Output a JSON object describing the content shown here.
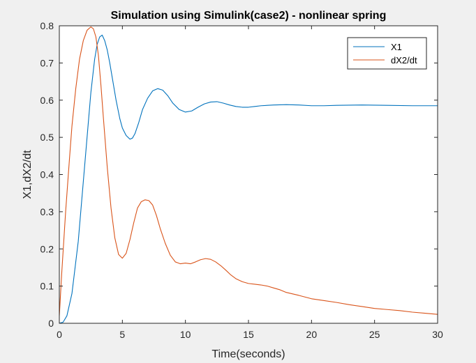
{
  "chart_data": {
    "type": "line",
    "title": "Simulation using Simulink(case2) - nonlinear spring",
    "xlabel": "Time(seconds)",
    "ylabel": "X1,dX2/dt",
    "xlim": [
      0,
      30
    ],
    "ylim": [
      0,
      0.8
    ],
    "xticks": [
      "0",
      "5",
      "10",
      "15",
      "20",
      "25",
      "30"
    ],
    "yticks": [
      "0",
      "0.1",
      "0.2",
      "0.3",
      "0.4",
      "0.5",
      "0.6",
      "0.7",
      "0.8"
    ],
    "grid": false,
    "legend_position": "top-right",
    "series": [
      {
        "name": "X1",
        "color": "#0072BD",
        "x": [
          0,
          0.3,
          0.6,
          1.0,
          1.5,
          2.0,
          2.5,
          2.8,
          3.0,
          3.2,
          3.4,
          3.6,
          3.8,
          4.0,
          4.2,
          4.5,
          4.8,
          5.0,
          5.3,
          5.6,
          5.8,
          6.0,
          6.3,
          6.6,
          7.0,
          7.4,
          7.8,
          8.2,
          8.6,
          9.0,
          9.5,
          10.0,
          10.5,
          11.0,
          11.5,
          12.0,
          12.5,
          13.0,
          13.5,
          14.0,
          14.5,
          15.0,
          15.5,
          16.0,
          17.0,
          18.0,
          19.0,
          20.0,
          21.0,
          22.0,
          24.0,
          26.0,
          28.0,
          30.0
        ],
        "y": [
          0,
          0.003,
          0.02,
          0.08,
          0.22,
          0.42,
          0.62,
          0.71,
          0.75,
          0.77,
          0.775,
          0.76,
          0.735,
          0.7,
          0.66,
          0.6,
          0.55,
          0.525,
          0.505,
          0.495,
          0.498,
          0.51,
          0.54,
          0.575,
          0.605,
          0.625,
          0.631,
          0.627,
          0.612,
          0.592,
          0.575,
          0.568,
          0.571,
          0.581,
          0.59,
          0.595,
          0.596,
          0.592,
          0.587,
          0.583,
          0.581,
          0.581,
          0.583,
          0.585,
          0.587,
          0.588,
          0.587,
          0.585,
          0.585,
          0.586,
          0.587,
          0.586,
          0.585,
          0.585
        ]
      },
      {
        "name": "dX2/dt",
        "color": "#D95319",
        "x": [
          0,
          0.2,
          0.5,
          0.8,
          1.0,
          1.3,
          1.6,
          1.9,
          2.2,
          2.5,
          2.7,
          2.9,
          3.1,
          3.3,
          3.5,
          3.8,
          4.1,
          4.4,
          4.7,
          5.0,
          5.3,
          5.6,
          5.9,
          6.2,
          6.5,
          6.8,
          7.1,
          7.4,
          7.7,
          8.0,
          8.4,
          8.8,
          9.2,
          9.6,
          10.0,
          10.4,
          10.8,
          11.2,
          11.6,
          12.0,
          12.4,
          12.8,
          13.2,
          13.6,
          14.0,
          14.5,
          15.0,
          15.5,
          16.0,
          16.5,
          17.0,
          17.5,
          18.0,
          19.0,
          20.0,
          21.0,
          22.0,
          23.0,
          24.0,
          25.0,
          26.0,
          27.0,
          28.0,
          29.0,
          30.0
        ],
        "y": [
          0.02,
          0.14,
          0.3,
          0.44,
          0.53,
          0.63,
          0.71,
          0.76,
          0.788,
          0.797,
          0.792,
          0.77,
          0.72,
          0.64,
          0.55,
          0.42,
          0.31,
          0.23,
          0.185,
          0.175,
          0.188,
          0.225,
          0.27,
          0.31,
          0.327,
          0.332,
          0.33,
          0.318,
          0.29,
          0.255,
          0.215,
          0.183,
          0.165,
          0.16,
          0.162,
          0.16,
          0.165,
          0.171,
          0.174,
          0.172,
          0.165,
          0.155,
          0.143,
          0.13,
          0.12,
          0.112,
          0.107,
          0.105,
          0.103,
          0.1,
          0.095,
          0.09,
          0.083,
          0.075,
          0.066,
          0.061,
          0.056,
          0.05,
          0.045,
          0.04,
          0.037,
          0.034,
          0.03,
          0.027,
          0.024
        ]
      }
    ]
  }
}
